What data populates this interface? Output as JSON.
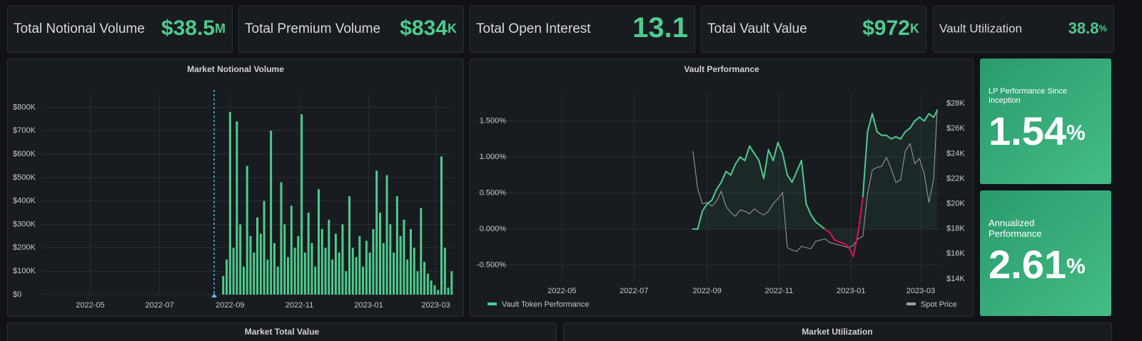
{
  "stats": [
    {
      "title": "Total Notional Volume",
      "value": "$38.5",
      "unit": "M"
    },
    {
      "title": "Total Premium Volume",
      "value": "$834",
      "unit": "K"
    },
    {
      "title": "Total Open Interest",
      "value": "13.1"
    },
    {
      "title": "Total Vault Value",
      "value": "$972",
      "unit": "K"
    },
    {
      "title": "Vault Utilization",
      "value": "38.8",
      "unit": "%"
    }
  ],
  "panels": {
    "notional": {
      "type": "bar",
      "title": "Market Notional Volume",
      "color": "#4ecb8d",
      "marker_color": "#5fb3e8",
      "marker_x": "2022-08-18",
      "x": [
        "2022-08-26",
        "2022-08-29",
        "2022-09-01",
        "2022-09-04",
        "2022-09-07",
        "2022-09-10",
        "2022-09-13",
        "2022-09-16",
        "2022-09-19",
        "2022-09-22",
        "2022-09-25",
        "2022-09-28",
        "2022-10-01",
        "2022-10-04",
        "2022-10-07",
        "2022-10-10",
        "2022-10-13",
        "2022-10-16",
        "2022-10-19",
        "2022-10-22",
        "2022-10-25",
        "2022-10-28",
        "2022-10-31",
        "2022-11-03",
        "2022-11-06",
        "2022-11-09",
        "2022-11-12",
        "2022-11-15",
        "2022-11-18",
        "2022-11-21",
        "2022-11-24",
        "2022-11-27",
        "2022-11-30",
        "2022-12-03",
        "2022-12-06",
        "2022-12-09",
        "2022-12-12",
        "2022-12-15",
        "2022-12-18",
        "2022-12-21",
        "2022-12-24",
        "2022-12-27",
        "2022-12-30",
        "2023-01-02",
        "2023-01-05",
        "2023-01-08",
        "2023-01-11",
        "2023-01-14",
        "2023-01-17",
        "2023-01-20",
        "2023-01-23",
        "2023-01-26",
        "2023-01-29",
        "2023-02-01",
        "2023-02-04",
        "2023-02-07",
        "2023-02-10",
        "2023-02-13",
        "2023-02-16",
        "2023-02-19",
        "2023-02-22",
        "2023-02-25",
        "2023-02-28",
        "2023-03-03",
        "2023-03-06",
        "2023-03-09",
        "2023-03-12",
        "2023-03-15"
      ],
      "values": [
        80000,
        150000,
        780000,
        200000,
        740000,
        300000,
        120000,
        550000,
        250000,
        180000,
        330000,
        260000,
        400000,
        150000,
        700000,
        220000,
        120000,
        480000,
        300000,
        160000,
        380000,
        200000,
        250000,
        770000,
        180000,
        350000,
        220000,
        120000,
        450000,
        280000,
        200000,
        320000,
        150000,
        260000,
        180000,
        300000,
        100000,
        420000,
        200000,
        160000,
        250000,
        120000,
        230000,
        180000,
        280000,
        530000,
        350000,
        220000,
        510000,
        300000,
        180000,
        420000,
        250000,
        320000,
        150000,
        280000,
        200000,
        100000,
        370000,
        140000,
        90000,
        60000,
        40000,
        20000,
        590000,
        200000,
        30000,
        100000
      ],
      "xlim": [
        "2022-03-19",
        "2023-03-17"
      ],
      "xticks": [
        "2022-05",
        "2022-07",
        "2022-09",
        "2022-11",
        "2023-01",
        "2023-03"
      ],
      "ylim": [
        0,
        862000
      ],
      "yticks": [
        {
          "value": 0,
          "label": "$0"
        },
        {
          "value": 100000,
          "label": "$100K"
        },
        {
          "value": 200000,
          "label": "$200K"
        },
        {
          "value": 300000,
          "label": "$300K"
        },
        {
          "value": 400000,
          "label": "$400K"
        },
        {
          "value": 500000,
          "label": "$500K"
        },
        {
          "value": 600000,
          "label": "$600K"
        },
        {
          "value": 700000,
          "label": "$700K"
        },
        {
          "value": 800000,
          "label": "$800K"
        }
      ],
      "grid": true
    },
    "vault": {
      "type": "line",
      "title": "Vault Performance",
      "negative_color": "#d6145a",
      "x": [
        "2022-08-20",
        "2022-08-24",
        "2022-08-28",
        "2022-09-01",
        "2022-09-05",
        "2022-09-09",
        "2022-09-13",
        "2022-09-17",
        "2022-09-21",
        "2022-09-25",
        "2022-09-29",
        "2022-10-03",
        "2022-10-07",
        "2022-10-11",
        "2022-10-15",
        "2022-10-19",
        "2022-10-23",
        "2022-10-27",
        "2022-10-31",
        "2022-11-04",
        "2022-11-08",
        "2022-11-12",
        "2022-11-16",
        "2022-11-20",
        "2022-11-24",
        "2022-11-28",
        "2022-12-02",
        "2022-12-06",
        "2022-12-10",
        "2022-12-14",
        "2022-12-18",
        "2022-12-22",
        "2022-12-26",
        "2022-12-30",
        "2023-01-03",
        "2023-01-07",
        "2023-01-11",
        "2023-01-15",
        "2023-01-19",
        "2023-01-23",
        "2023-01-27",
        "2023-01-31",
        "2023-02-04",
        "2023-02-08",
        "2023-02-12",
        "2023-02-16",
        "2023-02-20",
        "2023-02-24",
        "2023-02-28",
        "2023-03-04",
        "2023-03-08",
        "2023-03-12",
        "2023-03-15"
      ],
      "series": [
        {
          "name": "Vault Token Performance",
          "color": "#4ecb8d",
          "values": [
            0.0,
            0.0,
            0.25,
            0.35,
            0.4,
            0.55,
            0.65,
            0.8,
            0.75,
            0.9,
            1.0,
            0.95,
            1.15,
            1.05,
            0.95,
            0.7,
            1.1,
            0.95,
            1.2,
            1.05,
            0.75,
            0.65,
            0.8,
            0.95,
            0.35,
            0.2,
            0.1,
            0.05,
            0.0,
            -0.05,
            -0.15,
            -0.18,
            -0.2,
            -0.25,
            -0.38,
            -0.05,
            0.45,
            1.35,
            1.6,
            1.35,
            1.3,
            1.3,
            1.25,
            1.28,
            1.25,
            1.35,
            1.4,
            1.5,
            1.55,
            1.5,
            1.6,
            1.55,
            1.65
          ]
        },
        {
          "name": "Spot Price",
          "color": "#a0a0a0",
          "axis": "y2",
          "values": [
            24200,
            21200,
            20000,
            20100,
            19800,
            20200,
            21000,
            19800,
            19300,
            19000,
            19500,
            19400,
            19200,
            19600,
            19300,
            19100,
            19400,
            20000,
            20400,
            20900,
            16500,
            16300,
            16200,
            16600,
            16500,
            16400,
            17000,
            17100,
            17200,
            16900,
            16800,
            16700,
            16600,
            16500,
            16700,
            17200,
            17400,
            20800,
            22700,
            22900,
            23000,
            23700,
            22800,
            21700,
            21900,
            24200,
            24800,
            23200,
            23600,
            22400,
            20100,
            22000,
            27500
          ]
        }
      ],
      "xlim": [
        "2022-02-16",
        "2023-03-18"
      ],
      "xticks": [
        "2022-05",
        "2022-07",
        "2022-09",
        "2022-11",
        "2023-01",
        "2023-03"
      ],
      "ylim": [
        -0.73,
        1.89
      ],
      "yticks": [
        {
          "value": -0.5,
          "label": "-0.500%"
        },
        {
          "value": 0,
          "label": "0.000%"
        },
        {
          "value": 0.5,
          "label": "0.500%"
        },
        {
          "value": 1,
          "label": "1.000%"
        },
        {
          "value": 1.5,
          "label": "1.500%"
        }
      ],
      "y2lim": [
        13770,
        28860
      ],
      "y2ticks": [
        {
          "value": 14000,
          "label": "$14K"
        },
        {
          "value": 16000,
          "label": "$16K"
        },
        {
          "value": 18000,
          "label": "$18K"
        },
        {
          "value": 20000,
          "label": "$20K"
        },
        {
          "value": 22000,
          "label": "$22K"
        },
        {
          "value": 24000,
          "label": "$24K"
        },
        {
          "value": 26000,
          "label": "$26K"
        },
        {
          "value": 28000,
          "label": "$28K"
        }
      ],
      "grid": true
    }
  },
  "side_stats": [
    {
      "title": "LP Performance Since Inception",
      "value": "1.54",
      "unit": "%"
    },
    {
      "title": "Annualized Performance",
      "value": "2.61",
      "unit": "%"
    }
  ],
  "bottom_panels": [
    "Market Total Value",
    "Market Utilization"
  ]
}
